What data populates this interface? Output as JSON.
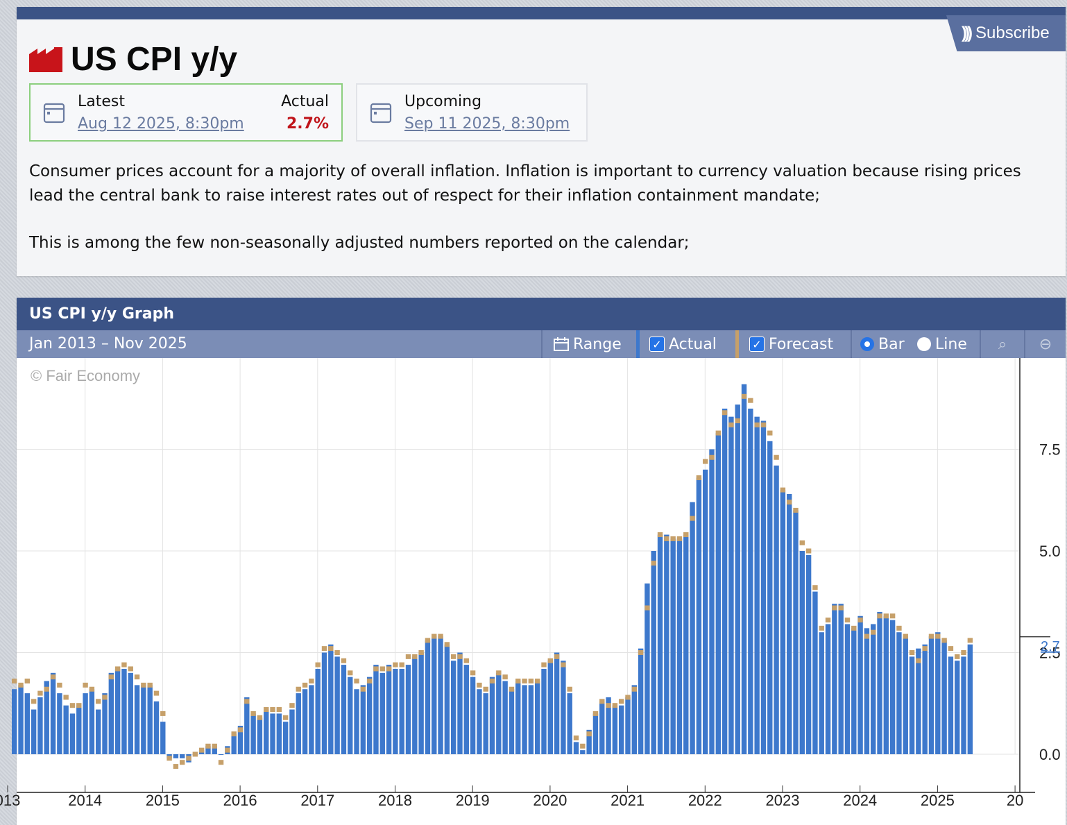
{
  "header": {
    "subscribe_label": "Subscribe",
    "title": "US CPI y/y"
  },
  "latest": {
    "label": "Latest",
    "date": "Aug 12 2025, 8:30pm",
    "actual_label": "Actual",
    "actual_value": "2.7%"
  },
  "upcoming": {
    "label": "Upcoming",
    "date": "Sep 11 2025, 8:30pm"
  },
  "description": {
    "p1": "Consumer prices account for a majority of overall inflation. Inflation is important to currency valuation because rising prices lead the central bank to raise interest rates out of respect for their inflation containment mandate;",
    "p2": "This is among the few non-seasonally adjusted numbers reported on the calendar;"
  },
  "graph": {
    "title": "US CPI y/y Graph",
    "range_text": "Jan 2013 – Nov 2025",
    "range_button": "Range",
    "actual_toggle": "Actual",
    "forecast_toggle": "Forecast",
    "bar_option": "Bar",
    "line_option": "Line",
    "copyright": "© Fair Economy"
  },
  "colors": {
    "header_blue": "#3b5386",
    "toolbar_blue": "#7b8db6",
    "bar_actual": "#3d78cc",
    "bar_forecast": "#c6a06a",
    "actual_value_red": "#c0141a",
    "latest_border": "#8ccf7e"
  },
  "chart_data": {
    "type": "bar",
    "x_start": "Jan 2013",
    "x_end": "Jul 2025",
    "x_tick_labels": [
      "013",
      "2014",
      "2015",
      "2016",
      "2017",
      "2018",
      "2019",
      "2020",
      "2021",
      "2022",
      "2023",
      "2024",
      "2025",
      "20"
    ],
    "y_tick_labels": [
      "0.0",
      "2.5",
      "5.0",
      "7.5"
    ],
    "ylim": [
      -0.4,
      9.4
    ],
    "latest_label": "2.7",
    "series": [
      {
        "name": "Actual",
        "values": [
          1.6,
          1.7,
          1.5,
          1.1,
          1.4,
          1.8,
          2.0,
          1.5,
          1.2,
          1.0,
          1.2,
          1.5,
          1.6,
          1.1,
          1.5,
          2.0,
          2.1,
          2.1,
          2.0,
          1.7,
          1.7,
          1.7,
          1.3,
          0.8,
          -0.1,
          -0.1,
          -0.1,
          -0.2,
          0.0,
          0.1,
          0.2,
          0.2,
          0.0,
          0.2,
          0.5,
          0.7,
          1.4,
          1.0,
          0.9,
          1.1,
          1.0,
          1.0,
          0.8,
          1.1,
          1.5,
          1.6,
          1.7,
          2.1,
          2.5,
          2.7,
          2.4,
          2.2,
          1.9,
          1.6,
          1.7,
          1.9,
          2.2,
          2.0,
          2.2,
          2.1,
          2.1,
          2.2,
          2.4,
          2.5,
          2.8,
          2.9,
          2.9,
          2.7,
          2.3,
          2.5,
          2.2,
          1.9,
          1.6,
          1.5,
          1.9,
          2.0,
          1.8,
          1.6,
          1.8,
          1.7,
          1.7,
          1.8,
          2.1,
          2.3,
          2.5,
          2.3,
          1.5,
          0.3,
          0.1,
          0.6,
          1.0,
          1.3,
          1.4,
          1.2,
          1.2,
          1.4,
          1.7,
          2.6,
          4.2,
          5.0,
          5.4,
          5.4,
          5.3,
          5.3,
          5.4,
          6.2,
          6.8,
          7.0,
          7.5,
          7.9,
          8.5,
          8.3,
          8.6,
          9.1,
          8.5,
          8.3,
          8.2,
          7.7,
          7.1,
          6.5,
          6.4,
          6.0,
          5.0,
          4.9,
          4.0,
          3.0,
          3.2,
          3.7,
          3.7,
          3.2,
          3.1,
          3.4,
          3.1,
          3.2,
          3.5,
          3.4,
          3.3,
          3.0,
          2.9,
          2.4,
          2.6,
          2.7,
          2.9,
          3.0,
          2.8,
          2.4,
          2.3,
          2.4,
          2.7
        ]
      },
      {
        "name": "Forecast",
        "values": [
          1.8,
          1.7,
          1.8,
          1.3,
          1.5,
          1.6,
          1.9,
          1.7,
          1.4,
          1.2,
          1.2,
          1.7,
          1.6,
          1.3,
          1.4,
          1.9,
          2.1,
          2.2,
          2.1,
          1.9,
          1.7,
          1.7,
          1.5,
          1.0,
          -0.1,
          -0.3,
          -0.2,
          -0.1,
          0.0,
          0.1,
          0.2,
          0.2,
          -0.2,
          0.1,
          0.5,
          0.6,
          1.3,
          1.0,
          0.9,
          1.1,
          1.1,
          1.1,
          0.9,
          1.2,
          1.6,
          1.7,
          1.8,
          2.2,
          2.6,
          2.6,
          2.5,
          2.3,
          2.0,
          1.8,
          1.6,
          1.8,
          2.1,
          2.1,
          2.1,
          2.2,
          2.2,
          2.4,
          2.4,
          2.5,
          2.8,
          2.9,
          2.9,
          2.7,
          2.4,
          2.4,
          2.3,
          2.0,
          1.7,
          1.6,
          1.8,
          2.0,
          1.9,
          1.6,
          1.8,
          1.8,
          1.8,
          1.8,
          2.2,
          2.3,
          2.4,
          2.2,
          1.6,
          0.4,
          0.2,
          0.5,
          1.0,
          1.3,
          1.2,
          1.2,
          1.3,
          1.4,
          1.6,
          2.5,
          3.6,
          4.7,
          5.4,
          5.3,
          5.3,
          5.3,
          5.4,
          5.8,
          6.8,
          7.2,
          7.3,
          7.9,
          8.4,
          8.1,
          8.2,
          8.8,
          8.7,
          8.1,
          8.1,
          7.9,
          7.3,
          6.5,
          6.2,
          6.0,
          5.2,
          5.0,
          4.1,
          3.1,
          3.3,
          3.6,
          3.6,
          3.3,
          3.1,
          3.3,
          2.9,
          3.0,
          3.4,
          3.4,
          3.4,
          3.1,
          2.9,
          2.5,
          2.3,
          2.6,
          2.9,
          2.9,
          2.8,
          2.6,
          2.4,
          2.5,
          2.8
        ]
      }
    ]
  }
}
